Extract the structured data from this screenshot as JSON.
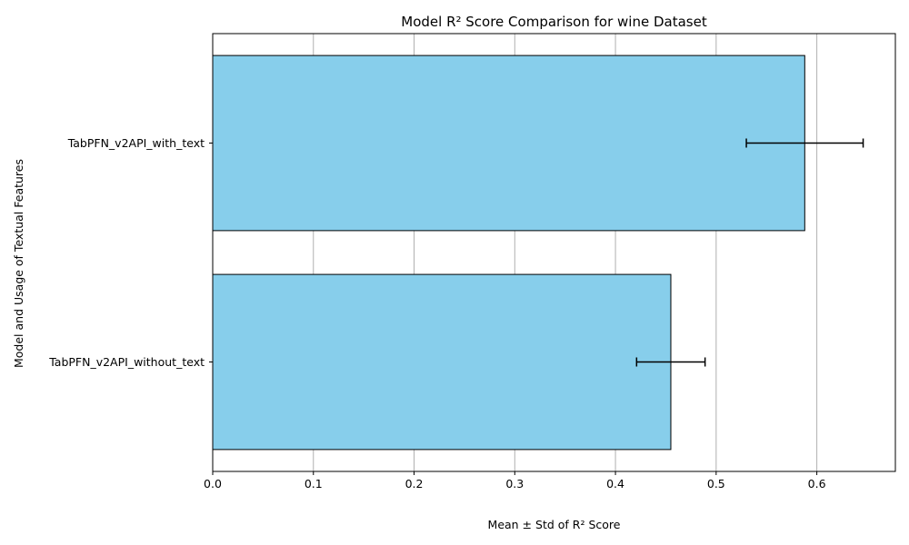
{
  "chart_data": {
    "type": "bar",
    "orientation": "horizontal",
    "title": "Model R² Score Comparison for wine Dataset",
    "xlabel": "Mean ± Std of R² Score",
    "ylabel": "Model and Usage of Textual Features",
    "categories": [
      "TabPFN_v2API_without_text",
      "TabPFN_v2API_with_text"
    ],
    "values": [
      0.455,
      0.588
    ],
    "errors": [
      0.034,
      0.058
    ],
    "xlim": [
      0.0,
      0.678
    ],
    "xticks": [
      "0.0",
      "0.1",
      "0.2",
      "0.3",
      "0.4",
      "0.5",
      "0.6"
    ],
    "grid": "x-axis only",
    "bar_color": "#87CEEB",
    "bar_edge_color": "#000000",
    "error_color": "#000000",
    "grid_color": "#b0b0b0"
  }
}
